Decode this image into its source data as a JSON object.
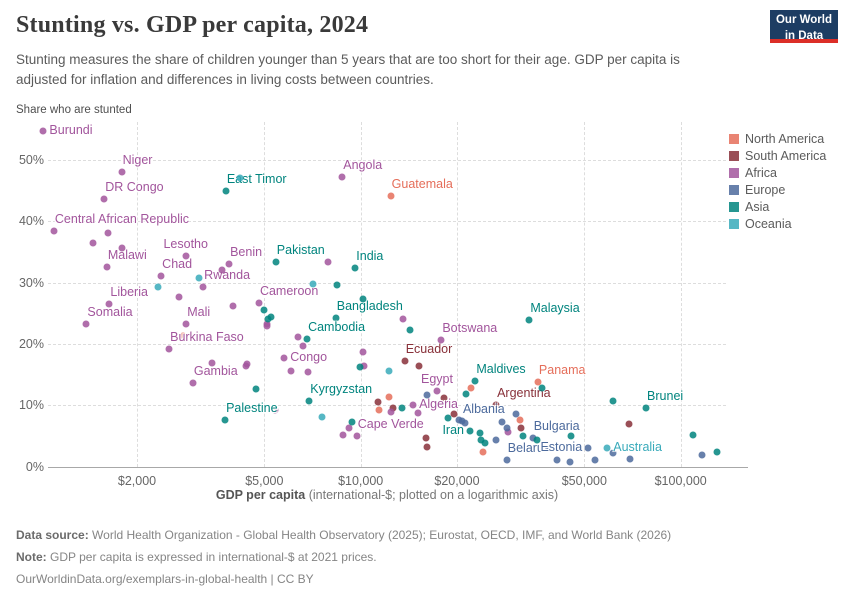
{
  "header": {
    "title": "Stunting vs. GDP per capita, 2024",
    "subtitle": "Stunting measures the share of children younger than 5 years that are too short for their age. GDP per capita is adjusted for inflation and differences in living costs between countries.",
    "logo_line1": "Our World",
    "logo_line2": "in Data"
  },
  "chart": {
    "y_axis_title": "Share who are stunted",
    "x_axis_label_bold": "GDP per capita",
    "x_axis_label_rest": " (international-$; plotted on a logarithmic axis)"
  },
  "footer": {
    "source_bold": "Data source:",
    "source_rest": " World Health Organization - Global Health Observatory (2025); Eurostat, OECD, IMF, and World Bank (2026)",
    "note_bold": "Note:",
    "note_rest": " GDP per capita is expressed in international-$ at 2021 prices.",
    "link": "OurWorldinData.org/exemplars-in-global-health | CC BY"
  },
  "chart_data": {
    "type": "scatter",
    "title": "Stunting vs. GDP per capita, 2024",
    "xlabel": "GDP per capita (international-$; plotted on a logarithmic axis)",
    "ylabel": "Share who are stunted",
    "x_scale": "log",
    "grid": true,
    "legend_position": "right",
    "xlim": [
      1000,
      135000
    ],
    "ylim": [
      0,
      56
    ],
    "x_ticks": [
      2000,
      5000,
      10000,
      20000,
      50000,
      100000
    ],
    "x_tick_labels": [
      "$2,000",
      "$5,000",
      "$10,000",
      "$20,000",
      "$50,000",
      "$100,000"
    ],
    "y_ticks": [
      0,
      10,
      20,
      30,
      40,
      50
    ],
    "y_tick_labels": [
      "0%",
      "10%",
      "20%",
      "30%",
      "40%",
      "50%"
    ],
    "series": [
      {
        "name": "North America",
        "color": "#E56E5A",
        "points": [
          {
            "g": 12410,
            "p": 44.2,
            "n": "Guatemala",
            "lp": "ar"
          },
          {
            "g": 35800,
            "p": 13.8,
            "n": "Panama",
            "lp": "ar"
          },
          {
            "g": 2780,
            "p": 21.3
          },
          {
            "g": 12290,
            "p": 11.3
          },
          {
            "g": 11440,
            "p": 9.2
          },
          {
            "g": 24070,
            "p": 2.4
          },
          {
            "g": 31480,
            "p": 7.6
          },
          {
            "g": 22070,
            "p": 12.8
          }
        ]
      },
      {
        "name": "South America",
        "color": "#883039",
        "points": [
          {
            "g": 13730,
            "p": 17.2,
            "n": "Ecuador",
            "lp": "ar"
          },
          {
            "g": 26500,
            "p": 10.1,
            "n": "Argentina",
            "lp": "ar"
          },
          {
            "g": 11310,
            "p": 10.5
          },
          {
            "g": 16010,
            "p": 4.6
          },
          {
            "g": 16090,
            "p": 3.2
          },
          {
            "g": 19580,
            "p": 8.6
          },
          {
            "g": 31630,
            "p": 6.2
          },
          {
            "g": 69100,
            "p": 6.9
          },
          {
            "g": 18260,
            "p": 11.2
          },
          {
            "g": 12650,
            "p": 9.5
          },
          {
            "g": 15220,
            "p": 16.4
          }
        ]
      },
      {
        "name": "Africa",
        "color": "#A2559C",
        "points": [
          {
            "g": 1020,
            "p": 54.7,
            "n": "Burundi",
            "lp": "r"
          },
          {
            "g": 1790,
            "p": 48.0,
            "n": "Niger",
            "lp": "ar"
          },
          {
            "g": 1580,
            "p": 43.6,
            "n": "DR Congo",
            "lp": "ar"
          },
          {
            "g": 1100,
            "p": 38.4,
            "n": "Central African Republic",
            "lp": "ar"
          },
          {
            "g": 8760,
            "p": 47.2,
            "n": "Angola",
            "lp": "ar"
          },
          {
            "g": 1610,
            "p": 32.5,
            "n": "Malawi",
            "lp": "ar"
          },
          {
            "g": 2840,
            "p": 34.4,
            "n": "Lesotho",
            "lp": "a"
          },
          {
            "g": 2380,
            "p": 31.1,
            "n": "Chad",
            "lp": "ar"
          },
          {
            "g": 3880,
            "p": 33.0,
            "n": "Benin",
            "lp": "ar"
          },
          {
            "g": 3220,
            "p": 29.3,
            "n": "Rwanda",
            "lp": "ar"
          },
          {
            "g": 1640,
            "p": 26.5,
            "n": "Liberia",
            "lp": "ar"
          },
          {
            "g": 1390,
            "p": 23.2,
            "n": "Somalia",
            "lp": "ar"
          },
          {
            "g": 2850,
            "p": 23.2,
            "n": "Mali",
            "lp": "ar"
          },
          {
            "g": 2520,
            "p": 19.2,
            "n": "Burkina Faso",
            "lp": "ar"
          },
          {
            "g": 2990,
            "p": 13.7,
            "n": "Gambia",
            "lp": "ar"
          },
          {
            "g": 4810,
            "p": 26.6,
            "n": "Cameroon",
            "lp": "ar"
          },
          {
            "g": 5770,
            "p": 17.7,
            "n": "Congo",
            "lp": "r"
          },
          {
            "g": 9720,
            "p": 4.9,
            "n": "Cape Verde",
            "lp": "ar"
          },
          {
            "g": 17870,
            "p": 20.6,
            "n": "Botswana",
            "lp": "ar"
          },
          {
            "g": 17320,
            "p": 12.3,
            "n": "Egypt",
            "lp": "a"
          },
          {
            "g": 14580,
            "p": 10.0,
            "n": "Algeria",
            "lp": "r"
          },
          {
            "g": 2710,
            "p": 27.7
          },
          {
            "g": 3990,
            "p": 26.2
          },
          {
            "g": 3690,
            "p": 32.1
          },
          {
            "g": 1620,
            "p": 38.1
          },
          {
            "g": 1460,
            "p": 36.5
          },
          {
            "g": 1800,
            "p": 35.7
          },
          {
            "g": 5100,
            "p": 23.2
          },
          {
            "g": 6600,
            "p": 19.7
          },
          {
            "g": 6390,
            "p": 21.2
          },
          {
            "g": 10200,
            "p": 18.7
          },
          {
            "g": 6050,
            "p": 15.6
          },
          {
            "g": 6860,
            "p": 15.4
          },
          {
            "g": 4380,
            "p": 16.4
          },
          {
            "g": 3420,
            "p": 16.9
          },
          {
            "g": 4400,
            "p": 16.7
          },
          {
            "g": 5400,
            "p": 9.2
          },
          {
            "g": 10220,
            "p": 16.4
          },
          {
            "g": 12440,
            "p": 8.9
          },
          {
            "g": 15140,
            "p": 8.7
          },
          {
            "g": 8830,
            "p": 5.1
          },
          {
            "g": 28940,
            "p": 5.7
          },
          {
            "g": 9220,
            "p": 6.3
          },
          {
            "g": 5110,
            "p": 23.0
          },
          {
            "g": 7890,
            "p": 33.4
          },
          {
            "g": 13570,
            "p": 24.1
          }
        ]
      },
      {
        "name": "Europe",
        "color": "#4C6A9C",
        "points": [
          {
            "g": 20730,
            "p": 7.4,
            "n": "Albania",
            "lp": "ar"
          },
          {
            "g": 34490,
            "p": 4.6,
            "n": "Bulgaria",
            "lp": "ar"
          },
          {
            "g": 28610,
            "p": 1.1,
            "n": "Belarus",
            "lp": "ar"
          },
          {
            "g": 51400,
            "p": 3.0,
            "n": "Estonia",
            "lp": "l"
          },
          {
            "g": 20340,
            "p": 7.6
          },
          {
            "g": 21180,
            "p": 7.1
          },
          {
            "g": 26480,
            "p": 4.3
          },
          {
            "g": 28610,
            "p": 6.2
          },
          {
            "g": 27590,
            "p": 7.3
          },
          {
            "g": 61590,
            "p": 2.2
          },
          {
            "g": 116800,
            "p": 1.9
          },
          {
            "g": 40990,
            "p": 1.1
          },
          {
            "g": 45100,
            "p": 0.8
          },
          {
            "g": 54000,
            "p": 1.1
          },
          {
            "g": 69450,
            "p": 1.3
          },
          {
            "g": 16090,
            "p": 11.7
          },
          {
            "g": 30590,
            "p": 8.6
          }
        ]
      },
      {
        "name": "Asia",
        "color": "#00847E",
        "points": [
          {
            "g": 3790,
            "p": 45.0,
            "n": "East Timor",
            "lp": "ar"
          },
          {
            "g": 5430,
            "p": 33.3,
            "n": "Pakistan",
            "lp": "ar"
          },
          {
            "g": 9620,
            "p": 32.4,
            "n": "India",
            "lp": "ar"
          },
          {
            "g": 8360,
            "p": 24.2,
            "n": "Bangladesh",
            "lp": "ar"
          },
          {
            "g": 6800,
            "p": 20.8,
            "n": "Cambodia",
            "lp": "ar"
          },
          {
            "g": 6910,
            "p": 10.7,
            "n": "Kyrgyzstan",
            "lp": "ar"
          },
          {
            "g": 3770,
            "p": 7.6,
            "n": "Palestine",
            "lp": "ar"
          },
          {
            "g": 33660,
            "p": 23.9,
            "n": "Malaysia",
            "lp": "ar"
          },
          {
            "g": 22820,
            "p": 14.0,
            "n": "Maldives",
            "lp": "ar"
          },
          {
            "g": 21960,
            "p": 5.8,
            "n": "Iran",
            "lp": "l"
          },
          {
            "g": 77950,
            "p": 9.5,
            "n": "Brunei",
            "lp": "ar"
          },
          {
            "g": 8430,
            "p": 29.6
          },
          {
            "g": 5250,
            "p": 24.4
          },
          {
            "g": 4990,
            "p": 25.5
          },
          {
            "g": 10190,
            "p": 27.4
          },
          {
            "g": 9950,
            "p": 16.3
          },
          {
            "g": 4710,
            "p": 12.6
          },
          {
            "g": 9380,
            "p": 7.3
          },
          {
            "g": 13440,
            "p": 9.6
          },
          {
            "g": 18790,
            "p": 7.9
          },
          {
            "g": 23600,
            "p": 5.4
          },
          {
            "g": 23720,
            "p": 4.4
          },
          {
            "g": 24470,
            "p": 3.8
          },
          {
            "g": 32090,
            "p": 5.0
          },
          {
            "g": 35500,
            "p": 4.3
          },
          {
            "g": 45330,
            "p": 4.9
          },
          {
            "g": 61590,
            "p": 10.7
          },
          {
            "g": 109000,
            "p": 5.1
          },
          {
            "g": 129600,
            "p": 2.3
          },
          {
            "g": 21330,
            "p": 11.9
          },
          {
            "g": 5150,
            "p": 24.1
          },
          {
            "g": 14260,
            "p": 22.2
          },
          {
            "g": 36810,
            "p": 12.8
          }
        ]
      },
      {
        "name": "Oceania",
        "color": "#38AABA",
        "points": [
          {
            "g": 58970,
            "p": 3.0,
            "n": "Australia",
            "lp": "r"
          },
          {
            "g": 4200,
            "p": 47.1
          },
          {
            "g": 7100,
            "p": 29.8
          },
          {
            "g": 2330,
            "p": 29.3
          },
          {
            "g": 3130,
            "p": 30.7
          },
          {
            "g": 7570,
            "p": 8.0
          },
          {
            "g": 12240,
            "p": 15.6
          }
        ]
      }
    ]
  }
}
